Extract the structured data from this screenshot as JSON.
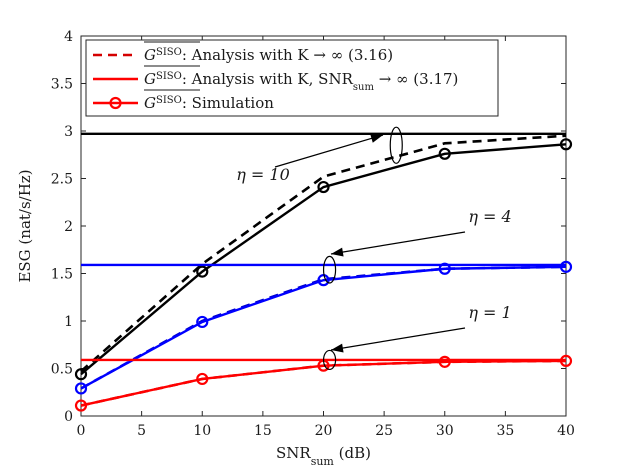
{
  "chart_data": {
    "type": "line",
    "xlabel": "SNR",
    "xlabel_sub": "sum",
    "xlabel_unit": "(dB)",
    "ylabel": "ESG (nat/s/Hz)",
    "xlim": [
      0,
      40
    ],
    "ylim": [
      0,
      4
    ],
    "xticks": [
      0,
      5,
      10,
      15,
      20,
      25,
      30,
      35,
      40
    ],
    "yticks": [
      0,
      0.5,
      1,
      1.5,
      2,
      2.5,
      3,
      3.5,
      4
    ],
    "ytick_labels": [
      "0",
      "0.5",
      "1",
      "1.5",
      "2",
      "2.5",
      "3",
      "3.5",
      "4"
    ],
    "grid": false,
    "legend": {
      "placement": "top-left",
      "entries": [
        {
          "symbol": "G",
          "sup": "SISO",
          "text": ": Analysis with K → ∞ (3.16)",
          "style": "dashed",
          "color": "#d40000"
        },
        {
          "symbol": "G",
          "sup": "SISO",
          "text": ": Analysis with K, SNR",
          "sub": "sum",
          "text2": " → ∞ (3.17)",
          "style": "solid",
          "color": "#ff0000"
        },
        {
          "symbol": "G",
          "sup": "SISO",
          "text": ": Simulation",
          "style": "marker",
          "color": "#ff0000"
        }
      ]
    },
    "series": [
      {
        "name": "eta=10 analysis K→∞",
        "group": "eta10",
        "style": "dashed",
        "color": "#000000",
        "x": [
          0,
          10,
          20,
          30,
          40
        ],
        "y": [
          0.47,
          1.6,
          2.52,
          2.87,
          2.95
        ]
      },
      {
        "name": "eta=10 simulation",
        "group": "eta10",
        "style": "marker",
        "color": "#000000",
        "x": [
          0,
          10,
          20,
          30,
          40
        ],
        "y": [
          0.44,
          1.52,
          2.41,
          2.76,
          2.86
        ]
      },
      {
        "name": "eta=10 asymptote",
        "group": "eta10",
        "style": "solid",
        "color": "#000000",
        "x": [
          0,
          40
        ],
        "y": [
          2.97,
          2.97
        ]
      },
      {
        "name": "eta=4 analysis K→∞",
        "group": "eta4",
        "style": "dashed",
        "color": "#0000cc",
        "x": [
          0,
          10,
          20,
          30,
          40
        ],
        "y": [
          0.29,
          1.0,
          1.44,
          1.55,
          1.57
        ]
      },
      {
        "name": "eta=4 simulation",
        "group": "eta4",
        "style": "marker",
        "color": "#0000ff",
        "x": [
          0,
          10,
          20,
          30,
          40
        ],
        "y": [
          0.29,
          0.99,
          1.43,
          1.55,
          1.57
        ]
      },
      {
        "name": "eta=4 asymptote",
        "group": "eta4",
        "style": "solid",
        "color": "#0000ff",
        "x": [
          0,
          40
        ],
        "y": [
          1.59,
          1.59
        ]
      },
      {
        "name": "eta=1 analysis K→∞",
        "group": "eta1",
        "style": "dashed",
        "color": "#d40000",
        "x": [
          0,
          10,
          20,
          30,
          40
        ],
        "y": [
          0.11,
          0.39,
          0.53,
          0.57,
          0.58
        ]
      },
      {
        "name": "eta=1 simulation",
        "group": "eta1",
        "style": "marker",
        "color": "#ff0000",
        "x": [
          0,
          10,
          20,
          30,
          40
        ],
        "y": [
          0.11,
          0.39,
          0.53,
          0.57,
          0.58
        ]
      },
      {
        "name": "eta=1 asymptote",
        "group": "eta1",
        "style": "solid",
        "color": "#ff0000",
        "x": [
          0,
          40
        ],
        "y": [
          0.59,
          0.59
        ]
      }
    ],
    "annotations": [
      {
        "text": "η = 10",
        "eta": "10",
        "ellipse_at": [
          26,
          2.85
        ],
        "ellipse_half_height": 0.19
      },
      {
        "text": "η = 4",
        "eta": "4",
        "ellipse_at": [
          20.5,
          1.54
        ],
        "ellipse_half_height": 0.14
      },
      {
        "text": "η = 1",
        "eta": "1",
        "ellipse_at": [
          20.5,
          0.59
        ],
        "ellipse_half_height": 0.1
      }
    ]
  }
}
